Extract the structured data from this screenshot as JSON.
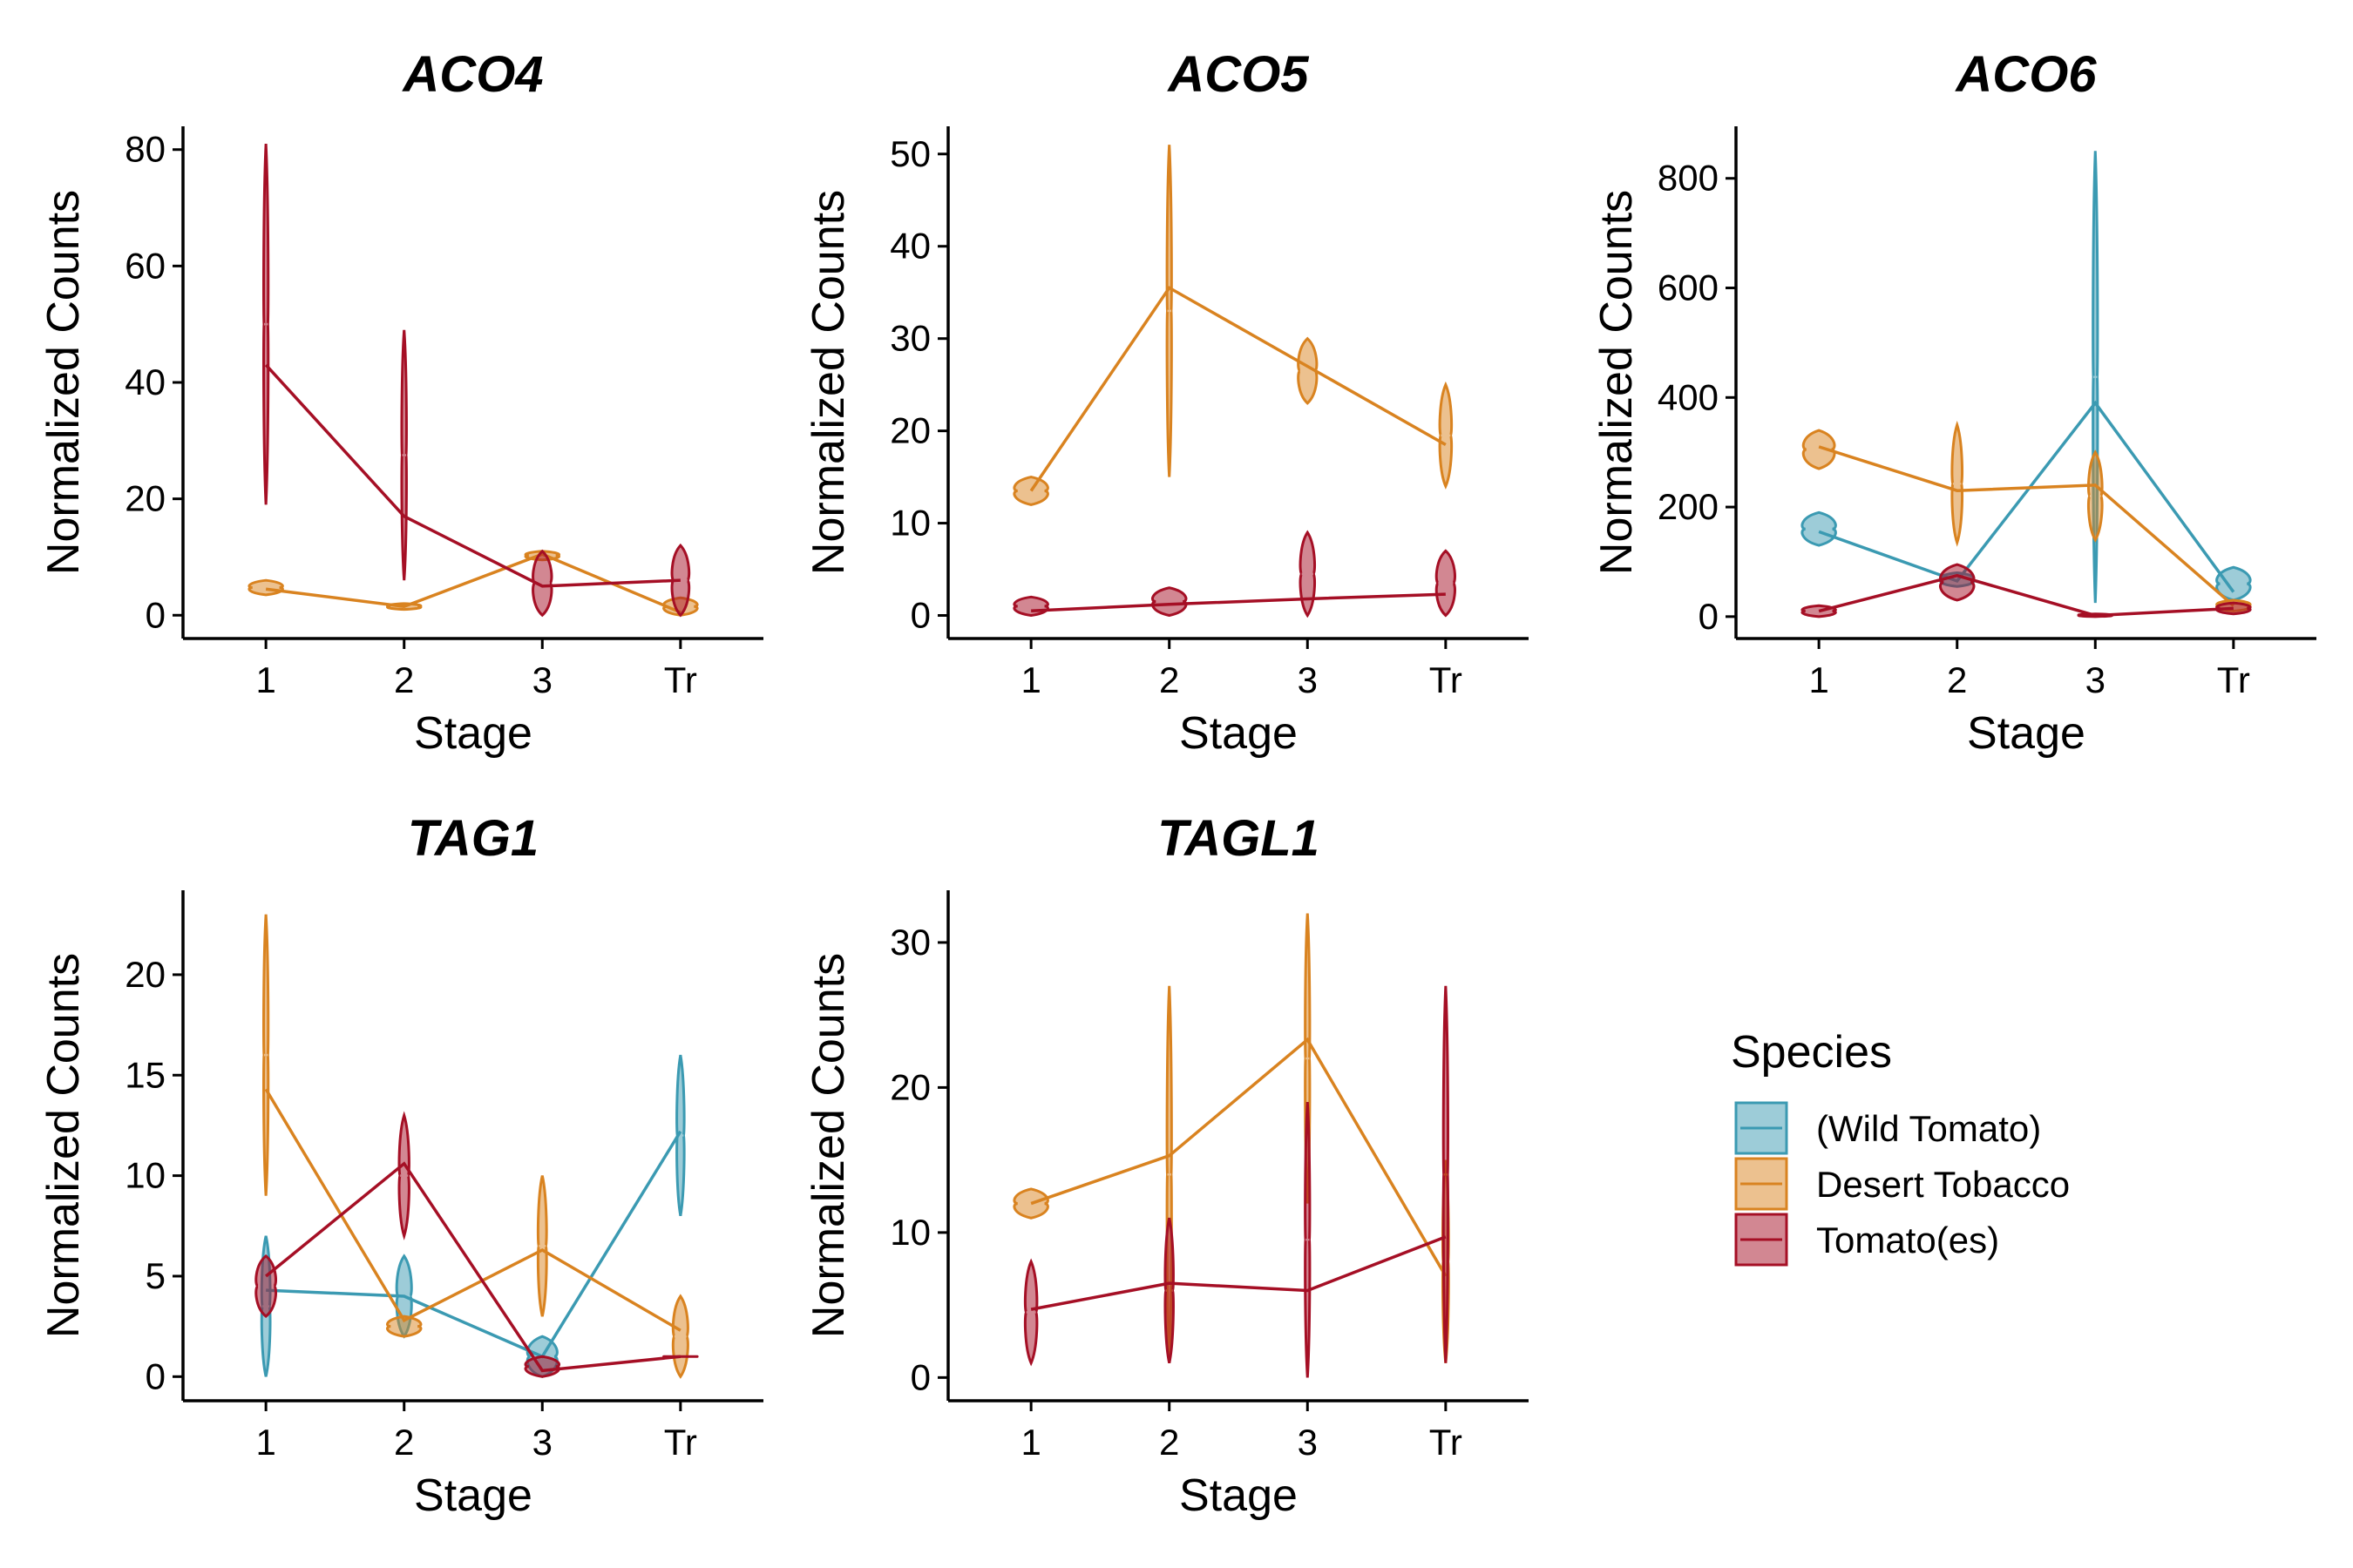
{
  "figure": {
    "legend": {
      "title": "Species",
      "entries": [
        {
          "name": "(Wild Tomato)",
          "color": "#3B9AB2"
        },
        {
          "name": "Desert Tobacco",
          "color": "#D98320"
        },
        {
          "name": "Tomato(es)",
          "color": "#A50F25"
        }
      ]
    }
  },
  "chart_data": [
    {
      "type": "line",
      "title": "ACO4",
      "xlabel": "Stage",
      "ylabel": "Normalized Counts",
      "categories": [
        "1",
        "2",
        "3",
        "Tr"
      ],
      "ylim": [
        -4,
        84
      ],
      "yticks": [
        0,
        20,
        40,
        60,
        80
      ],
      "series": [
        {
          "name": "Desert Tobacco",
          "color": "#D98320",
          "values": [
            4.5,
            1.5,
            10.5,
            0.5
          ],
          "ranges": [
            [
              3.5,
              6
            ],
            [
              1,
              2
            ],
            [
              9.5,
              11
            ],
            [
              0,
              3
            ]
          ]
        },
        {
          "name": "Tomato(es)",
          "color": "#A50F25",
          "values": [
            43,
            17,
            5,
            6
          ],
          "ranges": [
            [
              19,
              81
            ],
            [
              6,
              49
            ],
            [
              0,
              11
            ],
            [
              0,
              12
            ]
          ]
        }
      ]
    },
    {
      "type": "line",
      "title": "ACO5",
      "xlabel": "Stage",
      "ylabel": "Normalized Counts",
      "categories": [
        "1",
        "2",
        "3",
        "Tr"
      ],
      "ylim": [
        -2.5,
        53
      ],
      "yticks": [
        0,
        10,
        20,
        30,
        40,
        50
      ],
      "series": [
        {
          "name": "Desert Tobacco",
          "color": "#D98320",
          "values": [
            13.5,
            35.5,
            27,
            18.5
          ],
          "ranges": [
            [
              12,
              15
            ],
            [
              15,
              51
            ],
            [
              23,
              30
            ],
            [
              14,
              25
            ]
          ]
        },
        {
          "name": "Tomato(es)",
          "color": "#A50F25",
          "values": [
            0.5,
            1.2,
            1.8,
            2.3
          ],
          "ranges": [
            [
              0,
              2
            ],
            [
              0,
              3
            ],
            [
              0,
              9
            ],
            [
              0,
              7
            ]
          ]
        }
      ]
    },
    {
      "type": "line",
      "title": "ACO6",
      "xlabel": "Stage",
      "ylabel": "Normalized Counts",
      "categories": [
        "1",
        "2",
        "3",
        "Tr"
      ],
      "ylim": [
        -40,
        895
      ],
      "yticks": [
        0,
        200,
        400,
        600,
        800
      ],
      "series": [
        {
          "name": "(Wild Tomato)",
          "color": "#3B9AB2",
          "values": [
            155,
            65,
            390,
            45
          ],
          "ranges": [
            [
              130,
              190
            ],
            [
              55,
              80
            ],
            [
              25,
              850
            ],
            [
              30,
              90
            ]
          ]
        },
        {
          "name": "Desert Tobacco",
          "color": "#D98320",
          "values": [
            310,
            230,
            240,
            20
          ],
          "ranges": [
            [
              270,
              340
            ],
            [
              135,
              350
            ],
            [
              140,
              300
            ],
            [
              10,
              30
            ]
          ]
        },
        {
          "name": "Tomato(es)",
          "color": "#A50F25",
          "values": [
            10,
            75,
            2,
            15
          ],
          "ranges": [
            [
              0,
              20
            ],
            [
              30,
              95
            ],
            [
              0,
              5
            ],
            [
              5,
              25
            ]
          ]
        }
      ]
    },
    {
      "type": "line",
      "title": "TAG1",
      "xlabel": "Stage",
      "ylabel": "Normalized Counts",
      "categories": [
        "1",
        "2",
        "3",
        "Tr"
      ],
      "ylim": [
        -1.2,
        24.2
      ],
      "yticks": [
        0,
        5,
        10,
        15,
        20
      ],
      "series": [
        {
          "name": "(Wild Tomato)",
          "color": "#3B9AB2",
          "values": [
            4.3,
            4,
            1,
            12.2
          ],
          "ranges": [
            [
              0,
              7
            ],
            [
              2,
              6
            ],
            [
              0,
              2
            ],
            [
              8,
              16
            ]
          ]
        },
        {
          "name": "Desert Tobacco",
          "color": "#D98320",
          "values": [
            14.3,
            2.8,
            6.3,
            2.3
          ],
          "ranges": [
            [
              9,
              23
            ],
            [
              2,
              3
            ],
            [
              3,
              10
            ],
            [
              0,
              4
            ]
          ]
        },
        {
          "name": "Tomato(es)",
          "color": "#A50F25",
          "values": [
            5,
            10.6,
            0.3,
            1
          ],
          "ranges": [
            [
              3,
              6
            ],
            [
              7,
              13
            ],
            [
              0,
              1
            ],
            [
              1,
              1
            ]
          ]
        }
      ]
    },
    {
      "type": "line",
      "title": "TAGL1",
      "xlabel": "Stage",
      "ylabel": "Normalized Counts",
      "categories": [
        "1",
        "2",
        "3",
        "Tr"
      ],
      "ylim": [
        -1.6,
        33.6
      ],
      "yticks": [
        0,
        10,
        20,
        30
      ],
      "series": [
        {
          "name": "Desert Tobacco",
          "color": "#D98320",
          "values": [
            12,
            15.3,
            23.3,
            7
          ],
          "ranges": [
            [
              11,
              13
            ],
            [
              1,
              27
            ],
            [
              12,
              32
            ],
            [
              1,
              15
            ]
          ]
        },
        {
          "name": "Tomato(es)",
          "color": "#A50F25",
          "values": [
            4.7,
            6.5,
            6,
            9.7
          ],
          "ranges": [
            [
              1,
              8
            ],
            [
              1,
              11
            ],
            [
              0,
              19
            ],
            [
              1,
              27
            ]
          ]
        }
      ]
    }
  ]
}
